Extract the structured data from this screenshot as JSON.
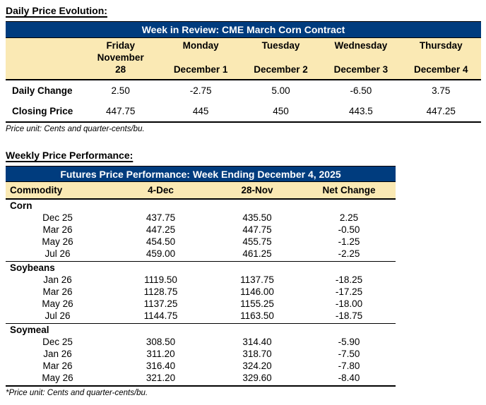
{
  "colors": {
    "header_blue": "#003C7E",
    "band_tan": "#FAE9B4"
  },
  "section1": {
    "title": "Daily Price Evolution:",
    "table_title": "Week in Review: CME March Corn Contract",
    "columns": [
      {
        "day": "Friday",
        "date": "November 28"
      },
      {
        "day": "Monday",
        "date": "December 1"
      },
      {
        "day": "Tuesday",
        "date": "December 2"
      },
      {
        "day": "Wednesday",
        "date": "December 3"
      },
      {
        "day": "Thursday",
        "date": "December 4"
      }
    ],
    "rows": [
      {
        "label": "Daily Change",
        "values": [
          "2.50",
          "-2.75",
          "5.00",
          "-6.50",
          "3.75"
        ]
      },
      {
        "label": "Closing Price",
        "values": [
          "447.75",
          "445",
          "450",
          "443.5",
          "447.25"
        ]
      }
    ],
    "footnote": "Price unit: Cents and quarter-cents/bu."
  },
  "section2": {
    "title": "Weekly Price Performance:",
    "table_title": "Futures Price Performance: Week Ending December 4, 2025",
    "columns": [
      "Commodity",
      "4-Dec",
      "28-Nov",
      "Net Change"
    ],
    "groups": [
      {
        "name": "Corn",
        "rows": [
          [
            "Dec 25",
            "437.75",
            "435.50",
            "2.25"
          ],
          [
            "Mar 26",
            "447.25",
            "447.75",
            "-0.50"
          ],
          [
            "May 26",
            "454.50",
            "455.75",
            "-1.25"
          ],
          [
            "Jul 26",
            "459.00",
            "461.25",
            "-2.25"
          ]
        ]
      },
      {
        "name": "Soybeans",
        "rows": [
          [
            "Jan 26",
            "1119.50",
            "1137.75",
            "-18.25"
          ],
          [
            "Mar 26",
            "1128.75",
            "1146.00",
            "-17.25"
          ],
          [
            "May 26",
            "1137.25",
            "1155.25",
            "-18.00"
          ],
          [
            "Jul 26",
            "1144.75",
            "1163.50",
            "-18.75"
          ]
        ]
      },
      {
        "name": "Soymeal",
        "rows": [
          [
            "Dec 25",
            "308.50",
            "314.40",
            "-5.90"
          ],
          [
            "Jan 26",
            "311.20",
            "318.70",
            "-7.50"
          ],
          [
            "Mar 26",
            "316.40",
            "324.20",
            "-7.80"
          ],
          [
            "May 26",
            "321.20",
            "329.60",
            "-8.40"
          ]
        ]
      }
    ],
    "footnote": "*Price unit: Cents and quarter-cents/bu."
  }
}
